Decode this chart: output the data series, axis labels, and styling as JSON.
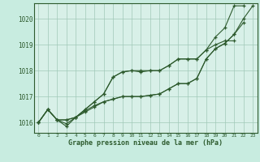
{
  "xlabel": "Graphe pression niveau de la mer (hPa)",
  "xlim": [
    -0.5,
    23.5
  ],
  "ylim": [
    1015.6,
    1020.6
  ],
  "yticks": [
    1016,
    1017,
    1018,
    1019,
    1020
  ],
  "xticks": [
    0,
    1,
    2,
    3,
    4,
    5,
    6,
    7,
    8,
    9,
    10,
    11,
    12,
    13,
    14,
    15,
    16,
    17,
    18,
    19,
    20,
    21,
    22,
    23
  ],
  "bg_color": "#c8ece0",
  "plot_bg_color": "#d8f0e8",
  "line_color": "#2d5a2d",
  "grid_color": "#a0c8b8",
  "series": [
    {
      "x": [
        0,
        1,
        2,
        3,
        4,
        5,
        6,
        7,
        8,
        9,
        10,
        11,
        12,
        13,
        14,
        15,
        16,
        17,
        18,
        19,
        20,
        21,
        22
      ],
      "y": [
        1016.0,
        1016.5,
        1016.1,
        1016.1,
        1016.2,
        1016.5,
        1016.8,
        1017.1,
        1017.75,
        1017.95,
        1018.0,
        1018.0,
        1018.0,
        1018.0,
        1018.2,
        1018.45,
        1018.45,
        1018.45,
        1018.8,
        1019.3,
        1019.65,
        1020.5,
        1020.5
      ]
    },
    {
      "x": [
        0,
        1,
        2,
        3,
        4,
        5,
        6,
        7,
        8,
        9,
        10,
        11,
        12,
        13,
        14,
        15,
        16,
        17,
        18,
        19,
        20,
        21
      ],
      "y": [
        1016.0,
        1016.5,
        1016.1,
        1016.1,
        1016.2,
        1016.5,
        1016.8,
        1017.1,
        1017.75,
        1017.95,
        1018.0,
        1017.95,
        1018.0,
        1018.0,
        1018.2,
        1018.45,
        1018.45,
        1018.45,
        1018.8,
        1019.0,
        1019.15,
        1019.15
      ]
    },
    {
      "x": [
        0,
        1,
        2,
        3,
        4,
        5,
        6,
        7,
        8,
        9,
        10,
        11,
        12,
        13,
        14,
        15,
        16,
        17,
        18,
        19,
        20,
        21,
        22,
        23
      ],
      "y": [
        1016.0,
        1016.5,
        1016.1,
        1015.95,
        1016.2,
        1016.45,
        1016.65,
        1016.8,
        1016.9,
        1017.0,
        1017.0,
        1017.0,
        1017.05,
        1017.1,
        1017.3,
        1017.5,
        1017.5,
        1017.7,
        1018.45,
        1018.85,
        1019.05,
        1019.4,
        1020.0,
        1020.5
      ]
    },
    {
      "x": [
        0,
        1,
        2,
        3,
        4,
        5,
        6,
        7,
        8,
        9,
        10,
        11,
        12,
        13,
        14,
        15,
        16,
        17,
        18,
        19,
        20,
        21,
        22
      ],
      "y": [
        1016.0,
        1016.5,
        1016.1,
        1015.85,
        1016.2,
        1016.4,
        1016.6,
        1016.8,
        1016.9,
        1017.0,
        1017.0,
        1017.0,
        1017.05,
        1017.1,
        1017.3,
        1017.5,
        1017.5,
        1017.7,
        1018.45,
        1018.85,
        1019.05,
        1019.4,
        1019.85
      ]
    }
  ]
}
